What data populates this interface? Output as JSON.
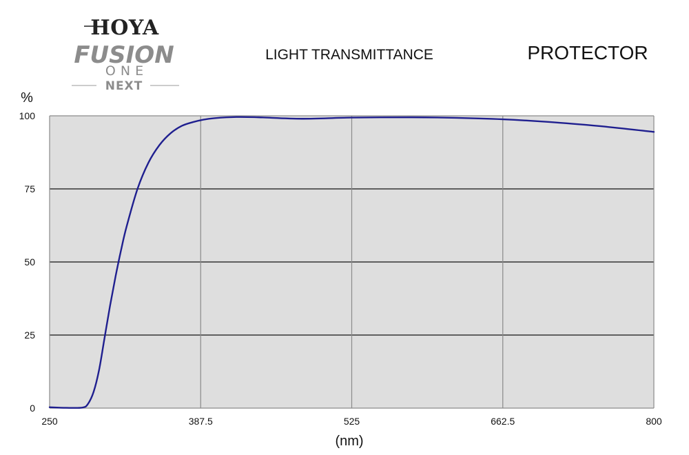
{
  "logo": {
    "brand": "HOYA",
    "line1": "FUSION",
    "line2": "ONE",
    "line3": "NEXT"
  },
  "chart_data": {
    "type": "line",
    "title": "LIGHT TRANSMITTANCE",
    "subtitle": "PROTECTOR",
    "xlabel": "(nm)",
    "ylabel": "%",
    "xlim": [
      250,
      800
    ],
    "ylim": [
      0,
      100
    ],
    "x_ticks": [
      "250",
      "387.5",
      "525",
      "662.5",
      "800"
    ],
    "y_ticks": [
      "0",
      "25",
      "50",
      "75",
      "100"
    ],
    "grid": true,
    "legend": "none",
    "colors": {
      "line": "#1f1f8f",
      "plot_background": "#dedede",
      "major_grid": "#111111",
      "minor_grid": "#8a8a8a"
    },
    "series": [
      {
        "name": "",
        "x": [
          250,
          265,
          280,
          285,
          290,
          295,
          300,
          305,
          310,
          315,
          320,
          330,
          340,
          350,
          360,
          370,
          380,
          390,
          400,
          420,
          440,
          480,
          525,
          580,
          620,
          662.5,
          700,
          750,
          800
        ],
        "y": [
          0.3,
          0.1,
          0.2,
          1.5,
          5.5,
          13,
          24,
          35,
          45,
          54,
          62,
          75,
          84,
          90,
          94,
          96.5,
          97.8,
          98.7,
          99.2,
          99.6,
          99.5,
          99.0,
          99.4,
          99.5,
          99.3,
          98.8,
          98.0,
          96.5,
          94.5
        ]
      }
    ]
  }
}
